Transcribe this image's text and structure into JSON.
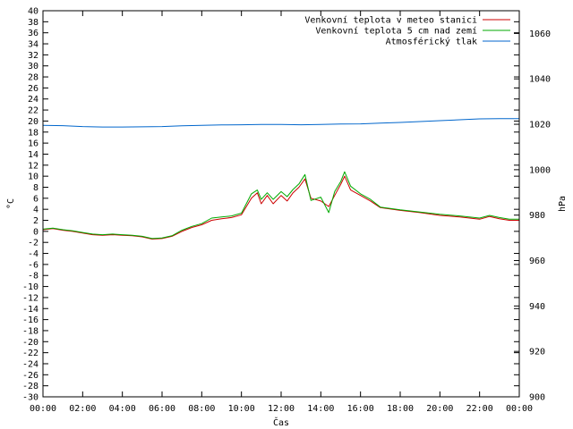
{
  "chart_data": {
    "type": "line",
    "title": "",
    "xlabel": "Čas",
    "ylabel": "°C",
    "y2label": "hPa",
    "xlim": [
      0,
      24
    ],
    "ylim": [
      -30,
      40
    ],
    "y2lim": [
      900,
      1070
    ],
    "grid": false,
    "legend_position": "top-right",
    "x_ticks": [
      "00:00",
      "02:00",
      "04:00",
      "06:00",
      "08:00",
      "10:00",
      "12:00",
      "14:00",
      "16:00",
      "18:00",
      "20:00",
      "22:00",
      "00:00"
    ],
    "y_ticks": [
      40,
      38,
      36,
      34,
      32,
      30,
      28,
      26,
      24,
      22,
      20,
      18,
      16,
      14,
      12,
      10,
      8,
      6,
      4,
      2,
      0,
      -2,
      -4,
      -6,
      -8,
      -10,
      -12,
      -14,
      -16,
      -18,
      -20,
      -22,
      -24,
      -26,
      -28,
      -30
    ],
    "y2_ticks": [
      1060,
      1040,
      1020,
      1000,
      980,
      960,
      940,
      920,
      900
    ],
    "series": [
      {
        "name": "Venkovní teplota v meteo stanici",
        "color": "#cc0000",
        "axis": "left",
        "x": [
          0,
          0.5,
          1,
          1.5,
          2,
          2.5,
          3,
          3.5,
          4,
          4.5,
          5,
          5.5,
          6,
          6.5,
          7,
          7.5,
          8,
          8.5,
          9,
          9.5,
          10,
          10.5,
          10.8,
          11,
          11.3,
          11.6,
          12,
          12.3,
          12.6,
          12.9,
          13.2,
          13.5,
          14,
          14.4,
          14.7,
          15,
          15.2,
          15.5,
          16,
          16.5,
          17,
          18,
          19,
          20,
          21,
          22,
          22.5,
          23,
          23.5,
          24
        ],
        "y": [
          0.3,
          0.5,
          0.2,
          0,
          -0.3,
          -0.6,
          -0.7,
          -0.6,
          -0.7,
          -0.8,
          -1.0,
          -1.4,
          -1.3,
          -0.9,
          0,
          0.7,
          1.2,
          2.0,
          2.3,
          2.5,
          3.0,
          6.0,
          7.0,
          5.0,
          6.5,
          5.0,
          6.5,
          5.5,
          7.0,
          8.0,
          9.5,
          6.0,
          5.5,
          4.5,
          6.5,
          8.5,
          10.0,
          7.5,
          6.5,
          5.5,
          4.3,
          3.8,
          3.4,
          2.9,
          2.6,
          2.2,
          2.7,
          2.3,
          2.0,
          2.0
        ]
      },
      {
        "name": "Venkovní teplota 5 cm nad zemí",
        "color": "#00aa00",
        "axis": "left",
        "x": [
          0,
          0.5,
          1,
          1.5,
          2,
          2.5,
          3,
          3.5,
          4,
          4.5,
          5,
          5.5,
          6,
          6.5,
          7,
          7.5,
          8,
          8.5,
          9,
          9.5,
          10,
          10.5,
          10.8,
          11,
          11.3,
          11.6,
          12,
          12.3,
          12.6,
          12.9,
          13.2,
          13.5,
          14,
          14.4,
          14.7,
          15,
          15.2,
          15.5,
          16,
          16.5,
          17,
          18,
          19,
          20,
          21,
          22,
          22.5,
          23,
          23.5,
          24
        ],
        "y": [
          0.4,
          0.6,
          0.3,
          0.1,
          -0.2,
          -0.5,
          -0.6,
          -0.5,
          -0.6,
          -0.7,
          -0.9,
          -1.3,
          -1.2,
          -0.8,
          0.2,
          0.9,
          1.4,
          2.4,
          2.6,
          2.8,
          3.3,
          6.8,
          7.5,
          5.8,
          7.0,
          5.8,
          7.2,
          6.3,
          7.6,
          8.6,
          10.3,
          5.6,
          6.2,
          3.4,
          7.2,
          9.0,
          10.8,
          8.2,
          6.8,
          5.8,
          4.4,
          3.9,
          3.5,
          3.1,
          2.8,
          2.4,
          2.9,
          2.5,
          2.2,
          2.2
        ]
      },
      {
        "name": "Atmosférický tlak",
        "color": "#0066cc",
        "axis": "right",
        "x": [
          0,
          1,
          2,
          3,
          4,
          5,
          6,
          7,
          8,
          9,
          10,
          11,
          12,
          13,
          14,
          15,
          16,
          17,
          18,
          19,
          20,
          21,
          22,
          23,
          24
        ],
        "y": [
          1019.5,
          1019.4,
          1019.0,
          1018.8,
          1018.8,
          1018.9,
          1019.0,
          1019.3,
          1019.5,
          1019.7,
          1019.8,
          1019.9,
          1019.9,
          1019.8,
          1019.9,
          1020.1,
          1020.2,
          1020.5,
          1020.8,
          1021.2,
          1021.6,
          1022.0,
          1022.4,
          1022.5,
          1022.5
        ]
      }
    ]
  }
}
